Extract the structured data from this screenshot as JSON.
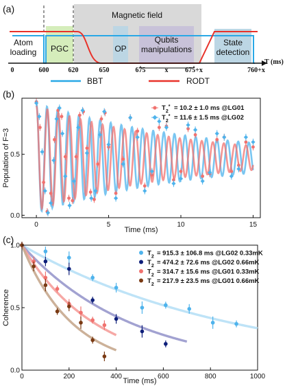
{
  "colors": {
    "bbt": "#29a8e6",
    "rodt": "#e8322a",
    "lg01": "#f0726f",
    "lg02": "#4eb3ec",
    "lg02_066": "#0e1f7a",
    "lg01_066": "#7a3a14",
    "fit_lg02_033": "#b7e0f6",
    "fit_lg02_066": "#9898cc",
    "fit_lg01_033": "#f59e9b",
    "fit_lg01_066": "#c7a98e"
  },
  "panel_a": {
    "label": "(a)",
    "magnetic_field": "Magnetic field",
    "atom_loading_1": "Atom",
    "atom_loading_2": "loading",
    "pgc": "PGC",
    "op": "OP",
    "qubits_1": "Qubits",
    "qubits_2": "manipulations",
    "state_1": "State",
    "state_2": "detection",
    "time_axis": "T (ms)",
    "ticks": [
      "0",
      "600",
      "620",
      "650",
      "675",
      "x",
      "675+x",
      "760+x"
    ],
    "legend_bbt": "BBT",
    "legend_rodt": "RODT"
  },
  "chart_data": [
    {
      "panel": "(b)",
      "type": "scatter",
      "xlabel": "Time (ms)",
      "ylabel": "Population of F=3",
      "xlim": [
        -1,
        15.5
      ],
      "ylim": [
        -0.02,
        0.96
      ],
      "xticks": [
        "0",
        "5",
        "10",
        "15"
      ],
      "yticks": [
        "0.0",
        "0.5"
      ],
      "series": [
        {
          "name": "T2* = 10.2 ± 1.0 ms @LG01",
          "legend_value": "= 10.2 ± 1.0 ms @LG01",
          "color": "#f0726f",
          "marker": "circle",
          "fit": {
            "amp": 0.43,
            "offset": 0.47,
            "freq": 1.31,
            "tau": 10.2
          },
          "x": [
            0,
            0.25,
            0.5,
            0.75,
            1.0,
            1.25,
            1.5,
            1.75,
            2.0,
            2.25,
            2.5,
            2.75,
            3.0,
            3.25,
            3.5,
            3.75,
            4.0,
            4.25,
            4.5,
            4.75,
            5.0,
            5.5,
            6.0,
            6.5,
            7.0,
            7.5,
            8.0,
            8.5,
            9.0,
            9.5,
            10.0,
            10.5,
            11.0,
            11.5,
            12.0,
            12.5,
            13.0,
            13.5,
            14.0,
            14.5,
            15.0
          ],
          "y": [
            0.93,
            0.72,
            0.27,
            0.03,
            0.18,
            0.62,
            0.86,
            0.81,
            0.48,
            0.14,
            0.12,
            0.48,
            0.82,
            0.85,
            0.55,
            0.19,
            0.13,
            0.42,
            0.79,
            0.84,
            0.56,
            0.18,
            0.46,
            0.8,
            0.69,
            0.24,
            0.33,
            0.72,
            0.73,
            0.29,
            0.36,
            0.71,
            0.66,
            0.32,
            0.34,
            0.62,
            0.64,
            0.36,
            0.41,
            0.6,
            0.56
          ]
        },
        {
          "name": "T2* = 11.6 ± 1.5 ms @LG02",
          "legend_value": "= 11.6 ± 1.5 ms @LG02",
          "color": "#4eb3ec",
          "marker": "diamond",
          "fit": {
            "amp": 0.45,
            "offset": 0.47,
            "freq": 1.36,
            "tau": 11.6
          },
          "x": [
            0,
            0.2,
            0.4,
            0.6,
            0.8,
            1.0,
            1.2,
            1.4,
            1.6,
            1.8,
            2.0,
            2.3,
            2.6,
            2.9,
            3.2,
            3.5,
            3.8,
            4.1,
            4.4,
            4.7,
            5.0,
            5.5,
            6.0,
            6.5,
            7.0,
            7.5,
            8.0,
            8.5,
            9.0,
            9.5,
            10.0,
            10.5,
            11.0,
            11.5,
            12.0,
            12.5,
            13.0,
            13.5,
            14.0,
            14.5,
            15.0
          ],
          "y": [
            0.92,
            0.81,
            0.52,
            0.2,
            0.02,
            0.1,
            0.45,
            0.79,
            0.88,
            0.67,
            0.32,
            0.08,
            0.28,
            0.72,
            0.86,
            0.51,
            0.14,
            0.2,
            0.66,
            0.85,
            0.58,
            0.14,
            0.42,
            0.8,
            0.64,
            0.2,
            0.36,
            0.77,
            0.72,
            0.26,
            0.3,
            0.74,
            0.7,
            0.28,
            0.35,
            0.67,
            0.64,
            0.32,
            0.38,
            0.64,
            0.6
          ]
        }
      ]
    },
    {
      "panel": "(c)",
      "type": "scatter",
      "xlabel": "Time (ms)",
      "ylabel": "Coherence",
      "xlim": [
        0,
        1000
      ],
      "ylim": [
        0,
        1.0
      ],
      "xticks": [
        "0",
        "200",
        "400",
        "600",
        "800",
        "1000"
      ],
      "yticks": [
        "0.0",
        "0.5",
        "1.0"
      ],
      "series": [
        {
          "name": "T2 = 915.3 ± 106.8 ms @LG02 0.33mK",
          "legend_value": "= 915.3 ± 106.8  ms @LG02 0.33mK",
          "color": "#4eb3ec",
          "fit_color": "#b7e0f6",
          "tau": 915.3,
          "fit_end": 1000,
          "x": [
            0,
            100,
            200,
            300,
            400,
            510,
            610,
            710,
            810,
            910
          ],
          "y": [
            1.0,
            0.95,
            0.9,
            0.74,
            0.66,
            0.5,
            0.52,
            0.49,
            0.38,
            0.37
          ]
        },
        {
          "name": "T2 = 474.2 ± 72.6 ms @LG02 0.66mK",
          "legend_value": "= 474.2 ± 72.6    ms @LG02 0.66mK",
          "color": "#0e1f7a",
          "fit_color": "#9898cc",
          "tau": 474.2,
          "fit_end": 700,
          "x": [
            0,
            100,
            200,
            300,
            400,
            510,
            610
          ],
          "y": [
            1.0,
            0.87,
            0.81,
            0.56,
            0.41,
            0.31,
            0.21
          ]
        },
        {
          "name": "T2 = 314.7 ± 15.6 ms @LG01 0.33mK",
          "legend_value": "= 314.7 ± 15.6    ms @LG01 0.33mK",
          "color": "#f0726f",
          "fit_color": "#f59e9b",
          "tau": 314.7,
          "fit_end": 400,
          "x": [
            0,
            50,
            100,
            150,
            200,
            250,
            300,
            350
          ],
          "y": [
            1.0,
            0.87,
            0.74,
            0.65,
            0.53,
            0.46,
            0.4,
            0.36
          ]
        },
        {
          "name": "T2 = 217.9 ± 23.5 ms @LG01 0.66mK",
          "legend_value": "= 217.9 ± 23.5    ms @LG01 0.66mK",
          "color": "#7a3a14",
          "fit_color": "#c7a98e",
          "tau": 217.9,
          "fit_end": 400,
          "x": [
            0,
            50,
            100,
            150,
            200,
            250,
            300,
            350
          ],
          "y": [
            1.0,
            0.83,
            0.68,
            0.47,
            0.51,
            0.38,
            0.24,
            0.11
          ]
        }
      ]
    }
  ]
}
